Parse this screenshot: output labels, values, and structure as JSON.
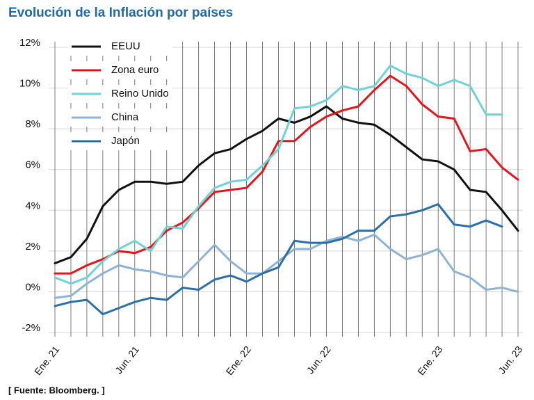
{
  "chart_data": {
    "type": "line",
    "title": "Evolución de la Inflación por países",
    "source": "[ Fuente: Bloomberg. ]",
    "categories": [
      "Ene. 21",
      null,
      null,
      null,
      null,
      "Jun. 21",
      null,
      null,
      null,
      null,
      null,
      null,
      "Ene. 22",
      null,
      null,
      null,
      null,
      "Jun. 22",
      null,
      null,
      null,
      null,
      null,
      null,
      "Ene. 23",
      null,
      null,
      null,
      null,
      "Jun. 23"
    ],
    "series": [
      {
        "name": "EEUU",
        "color": "#111111",
        "values": [
          1.4,
          1.7,
          2.6,
          4.2,
          5.0,
          5.4,
          5.4,
          5.3,
          5.4,
          6.2,
          6.8,
          7.0,
          7.5,
          7.9,
          8.5,
          8.3,
          8.6,
          9.1,
          8.5,
          8.3,
          8.2,
          7.7,
          7.1,
          6.5,
          6.4,
          6.0,
          5.0,
          4.9,
          4.0,
          3.0
        ]
      },
      {
        "name": "Zona euro",
        "color": "#e8141b",
        "values": [
          0.9,
          0.9,
          1.3,
          1.6,
          2.0,
          1.9,
          2.2,
          3.0,
          3.4,
          4.1,
          4.9,
          5.0,
          5.1,
          5.9,
          7.4,
          7.4,
          8.1,
          8.6,
          8.9,
          9.1,
          9.9,
          10.6,
          10.1,
          9.2,
          8.6,
          8.5,
          6.9,
          7.0,
          6.1,
          5.5
        ]
      },
      {
        "name": "Reino Unido",
        "color": "#6fd3d6",
        "values": [
          0.7,
          0.4,
          0.7,
          1.5,
          2.1,
          2.5,
          2.0,
          3.2,
          3.1,
          4.2,
          5.1,
          5.4,
          5.5,
          6.2,
          7.0,
          9.0,
          9.1,
          9.4,
          10.1,
          9.9,
          10.1,
          11.1,
          10.7,
          10.5,
          10.1,
          10.4,
          10.1,
          8.7,
          8.7,
          null
        ]
      },
      {
        "name": "China",
        "color": "#8fb3d4",
        "values": [
          -0.3,
          -0.2,
          0.4,
          0.9,
          1.3,
          1.1,
          1.0,
          0.8,
          0.7,
          1.5,
          2.3,
          1.5,
          0.9,
          0.9,
          1.5,
          2.1,
          2.1,
          2.5,
          2.7,
          2.5,
          2.8,
          2.1,
          1.6,
          1.8,
          2.1,
          1.0,
          0.7,
          0.1,
          0.2,
          0.0
        ]
      },
      {
        "name": "Japón",
        "color": "#2a6fa8",
        "values": [
          -0.7,
          -0.5,
          -0.4,
          -1.1,
          -0.8,
          -0.5,
          -0.3,
          -0.4,
          0.2,
          0.1,
          0.6,
          0.8,
          0.5,
          0.9,
          1.2,
          2.5,
          2.4,
          2.4,
          2.6,
          3.0,
          3.0,
          3.7,
          3.8,
          4.0,
          4.3,
          3.3,
          3.2,
          3.5,
          3.2,
          null
        ]
      }
    ],
    "ylim": [
      -2,
      12
    ],
    "yticks": [
      {
        "value": -2,
        "label": "-2%"
      },
      {
        "value": 0,
        "label": "0%"
      },
      {
        "value": 2,
        "label": "2%"
      },
      {
        "value": 4,
        "label": "4%"
      },
      {
        "value": 6,
        "label": "6%"
      },
      {
        "value": 8,
        "label": "8%"
      },
      {
        "value": 10,
        "label": "10%"
      },
      {
        "value": 12,
        "label": "12%"
      }
    ],
    "grid": true,
    "legend": "upper left"
  }
}
